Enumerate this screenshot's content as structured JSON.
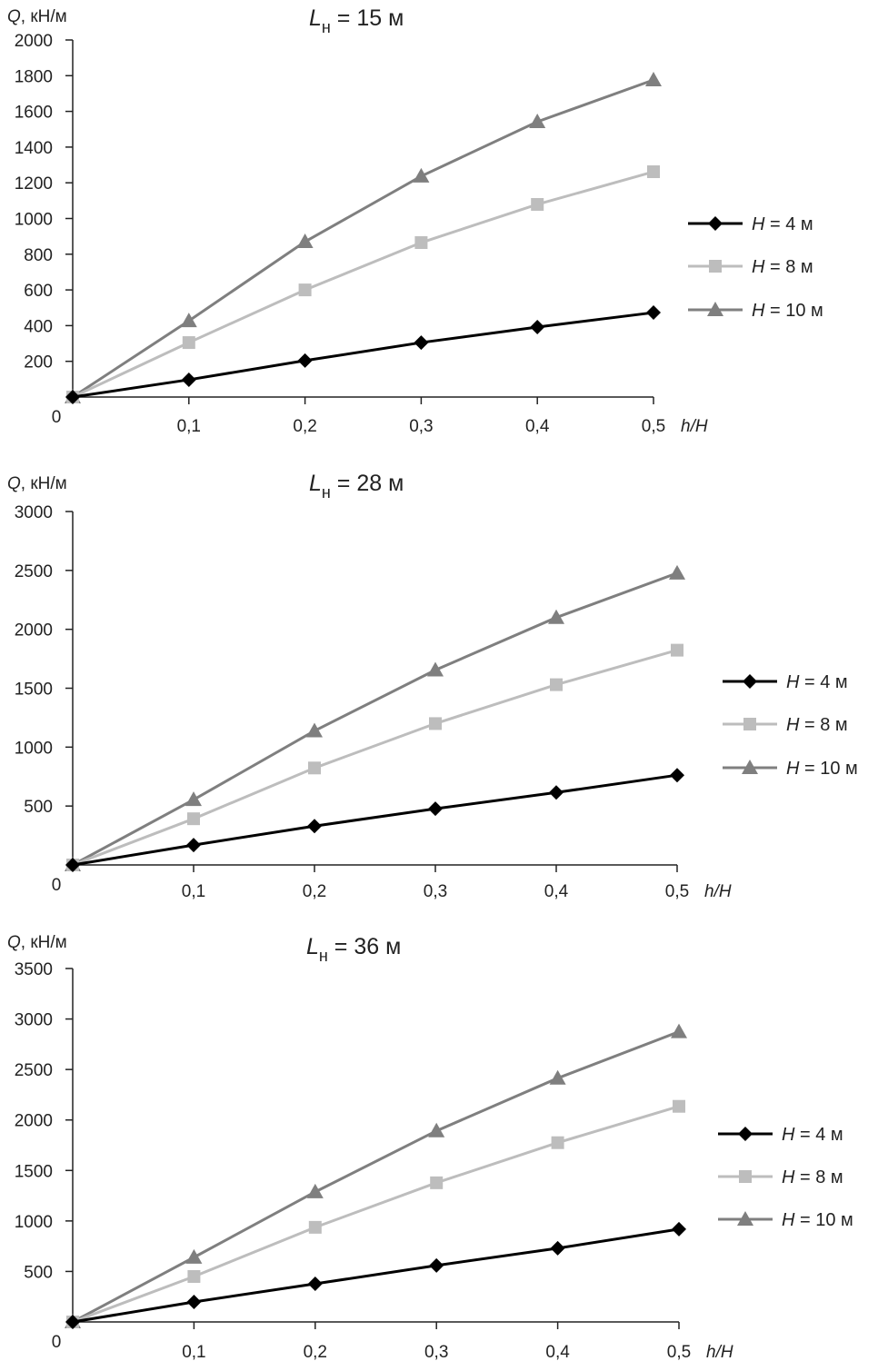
{
  "chart_data": [
    {
      "type": "line",
      "title": {
        "main": "L",
        "sub": "н",
        "rest": " = 15 м"
      },
      "ylabel": {
        "var": "Q",
        "unit": ", кН/м"
      },
      "xlabel": "h/H",
      "x": [
        0,
        0.1,
        0.2,
        0.3,
        0.4,
        0.5
      ],
      "xticks": [
        "0,1",
        "0,2",
        "0,3",
        "0,4",
        "0,5"
      ],
      "yticks": [
        "200",
        "400",
        "600",
        "800",
        "1000",
        "1200",
        "1400",
        "1600",
        "1800",
        "2000"
      ],
      "ytick_values": [
        200,
        400,
        600,
        800,
        1000,
        1200,
        1400,
        1600,
        1800,
        2000
      ],
      "origin_label": "0",
      "ylim": [
        0,
        2000
      ],
      "legend_position": "right",
      "series": [
        {
          "name": "H = 4 м",
          "var": "H",
          "rest": " = 4 м",
          "marker": "diamond",
          "color": "#000000",
          "values": [
            0,
            97,
            204,
            305,
            392,
            473
          ]
        },
        {
          "name": "H = 8 м",
          "var": "H",
          "rest": " = 8 м",
          "marker": "square",
          "color": "#bdbdbd",
          "values": [
            0,
            305,
            600,
            865,
            1079,
            1262
          ]
        },
        {
          "name": "H = 10 м",
          "var": "H",
          "rest": " = 10 м",
          "marker": "triangle",
          "color": "#7f7f7f",
          "values": [
            0,
            427,
            870,
            1237,
            1542,
            1776
          ]
        }
      ]
    },
    {
      "type": "line",
      "title": {
        "main": "L",
        "sub": "н",
        "rest": " = 28 м"
      },
      "ylabel": {
        "var": "Q",
        "unit": ", кН/м"
      },
      "xlabel": "h/H",
      "x": [
        0,
        0.1,
        0.2,
        0.3,
        0.4,
        0.5
      ],
      "xticks": [
        "0,1",
        "0,2",
        "0,3",
        "0,4",
        "0,5"
      ],
      "yticks": [
        "500",
        "1000",
        "1500",
        "2000",
        "2500",
        "3000"
      ],
      "ytick_values": [
        500,
        1000,
        1500,
        2000,
        2500,
        3000
      ],
      "origin_label": "0",
      "ylim": [
        0,
        3000
      ],
      "legend_position": "right",
      "series": [
        {
          "name": "H = 4 м",
          "var": "H",
          "rest": " = 4 м",
          "marker": "diamond",
          "color": "#000000",
          "values": [
            0,
            169,
            330,
            477,
            615,
            762
          ]
        },
        {
          "name": "H = 8 м",
          "var": "H",
          "rest": " = 8 м",
          "marker": "square",
          "color": "#bdbdbd",
          "values": [
            0,
            392,
            823,
            1200,
            1530,
            1823
          ]
        },
        {
          "name": "H = 10 м",
          "var": "H",
          "rest": " = 10 м",
          "marker": "triangle",
          "color": "#7f7f7f",
          "values": [
            0,
            554,
            1138,
            1654,
            2100,
            2477
          ]
        }
      ]
    },
    {
      "type": "line",
      "title": {
        "main": "L",
        "sub": "н",
        "rest": " = 36 м"
      },
      "ylabel": {
        "var": "Q",
        "unit": ", кН/м"
      },
      "xlabel": "h/H",
      "x": [
        0,
        0.1,
        0.2,
        0.3,
        0.4,
        0.5
      ],
      "xticks": [
        "0,1",
        "0,2",
        "0,3",
        "0,4",
        "0,5"
      ],
      "yticks": [
        "500",
        "1000",
        "1500",
        "2000",
        "2500",
        "3000",
        "3500"
      ],
      "ytick_values": [
        500,
        1000,
        1500,
        2000,
        2500,
        3000,
        3500
      ],
      "origin_label": "0",
      "ylim": [
        0,
        3500
      ],
      "legend_position": "right",
      "series": [
        {
          "name": "H = 4 м",
          "var": "H",
          "rest": " = 4 м",
          "marker": "diamond",
          "color": "#000000",
          "values": [
            0,
            198,
            378,
            559,
            730,
            919
          ]
        },
        {
          "name": "H = 8 м",
          "var": "H",
          "rest": " = 8 м",
          "marker": "square",
          "color": "#bdbdbd",
          "values": [
            0,
            450,
            937,
            1378,
            1775,
            2135
          ]
        },
        {
          "name": "H = 10 м",
          "var": "H",
          "rest": " = 10 м",
          "marker": "triangle",
          "color": "#7f7f7f",
          "values": [
            0,
            640,
            1288,
            1892,
            2414,
            2874
          ]
        }
      ]
    }
  ]
}
